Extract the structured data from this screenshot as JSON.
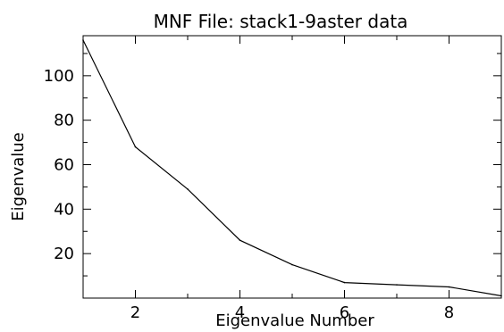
{
  "chart_data": {
    "type": "line",
    "title": "MNF File: stack1-9aster data",
    "xlabel": "Eigenvalue Number",
    "ylabel": "Eigenvalue",
    "xlim": [
      1,
      9
    ],
    "ylim": [
      0,
      118
    ],
    "x_ticks": [
      2,
      4,
      6,
      8
    ],
    "y_ticks": [
      20,
      40,
      60,
      80,
      100
    ],
    "x_minor_step": 1,
    "y_minor_step": 10,
    "grid": false,
    "series": [
      {
        "x": [
          1,
          2,
          3,
          4,
          5,
          6,
          7,
          8,
          9
        ],
        "values": [
          116,
          68,
          49,
          26,
          15,
          7,
          6,
          5,
          1
        ],
        "color": "#000000"
      }
    ]
  }
}
